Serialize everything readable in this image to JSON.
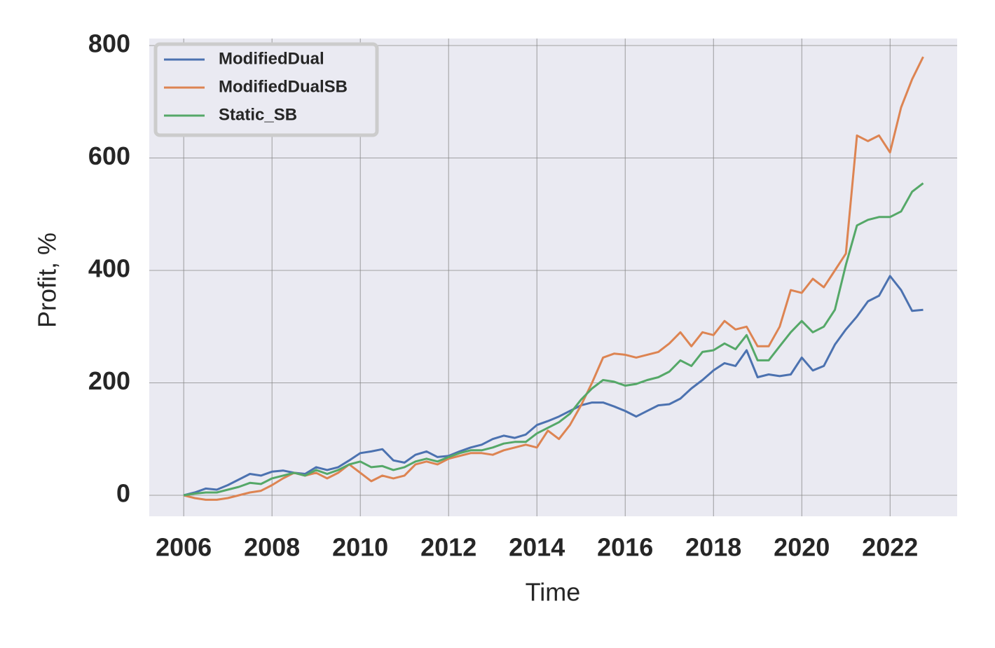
{
  "chart_data": {
    "type": "line",
    "xlabel": "Time",
    "ylabel": "Profit, %",
    "x": [
      2006.0,
      2006.25,
      2006.5,
      2006.75,
      2007.0,
      2007.25,
      2007.5,
      2007.75,
      2008.0,
      2008.25,
      2008.5,
      2008.75,
      2009.0,
      2009.25,
      2009.5,
      2009.75,
      2010.0,
      2010.25,
      2010.5,
      2010.75,
      2011.0,
      2011.25,
      2011.5,
      2011.75,
      2012.0,
      2012.25,
      2012.5,
      2012.75,
      2013.0,
      2013.25,
      2013.5,
      2013.75,
      2014.0,
      2014.25,
      2014.5,
      2014.75,
      2015.0,
      2015.25,
      2015.5,
      2015.75,
      2016.0,
      2016.25,
      2016.5,
      2016.75,
      2017.0,
      2017.25,
      2017.5,
      2017.75,
      2018.0,
      2018.25,
      2018.5,
      2018.75,
      2019.0,
      2019.25,
      2019.5,
      2019.75,
      2020.0,
      2020.25,
      2020.5,
      2020.75,
      2021.0,
      2021.25,
      2021.5,
      2021.75,
      2022.0,
      2022.25,
      2022.5,
      2022.75
    ],
    "series": [
      {
        "name": "ModifiedDual",
        "color": "#4c72b0",
        "values": [
          0,
          5,
          12,
          10,
          18,
          28,
          38,
          35,
          42,
          44,
          40,
          38,
          50,
          45,
          50,
          62,
          75,
          78,
          82,
          62,
          58,
          72,
          78,
          68,
          70,
          78,
          85,
          90,
          100,
          106,
          102,
          108,
          125,
          132,
          140,
          150,
          160,
          165,
          165,
          158,
          150,
          140,
          150,
          160,
          162,
          172,
          190,
          205,
          222,
          235,
          230,
          258,
          210,
          215,
          212,
          215,
          245,
          222,
          230,
          268,
          295,
          318,
          345,
          355,
          390,
          365,
          328,
          330
        ]
      },
      {
        "name": "ModifiedDualSB",
        "color": "#dd8452",
        "values": [
          0,
          -5,
          -8,
          -8,
          -5,
          0,
          5,
          8,
          18,
          30,
          40,
          35,
          40,
          30,
          40,
          55,
          40,
          25,
          35,
          30,
          35,
          55,
          60,
          55,
          65,
          70,
          75,
          75,
          72,
          80,
          85,
          90,
          85,
          115,
          100,
          125,
          160,
          200,
          245,
          252,
          250,
          245,
          250,
          255,
          270,
          290,
          265,
          290,
          285,
          310,
          295,
          300,
          265,
          265,
          300,
          365,
          360,
          385,
          370,
          400,
          430,
          640,
          630,
          640,
          610,
          690,
          740,
          780
        ]
      },
      {
        "name": "Static_SB",
        "color": "#55a868",
        "values": [
          0,
          3,
          5,
          5,
          10,
          15,
          22,
          20,
          30,
          35,
          40,
          35,
          45,
          38,
          45,
          55,
          60,
          50,
          52,
          45,
          50,
          60,
          65,
          60,
          68,
          75,
          80,
          80,
          85,
          92,
          95,
          95,
          110,
          120,
          130,
          145,
          170,
          190,
          205,
          202,
          195,
          198,
          205,
          210,
          220,
          240,
          230,
          255,
          258,
          270,
          260,
          285,
          240,
          240,
          265,
          290,
          310,
          290,
          300,
          330,
          410,
          480,
          490,
          495,
          495,
          505,
          540,
          555
        ]
      }
    ],
    "xlim": [
      2005.22,
      2023.52
    ],
    "ylim": [
      -37.4,
      812.5
    ],
    "xticks": [
      2006,
      2008,
      2010,
      2012,
      2014,
      2016,
      2018,
      2020,
      2022
    ],
    "yticks": [
      0,
      200,
      400,
      600,
      800
    ],
    "grid": true,
    "legend": "upper left"
  }
}
